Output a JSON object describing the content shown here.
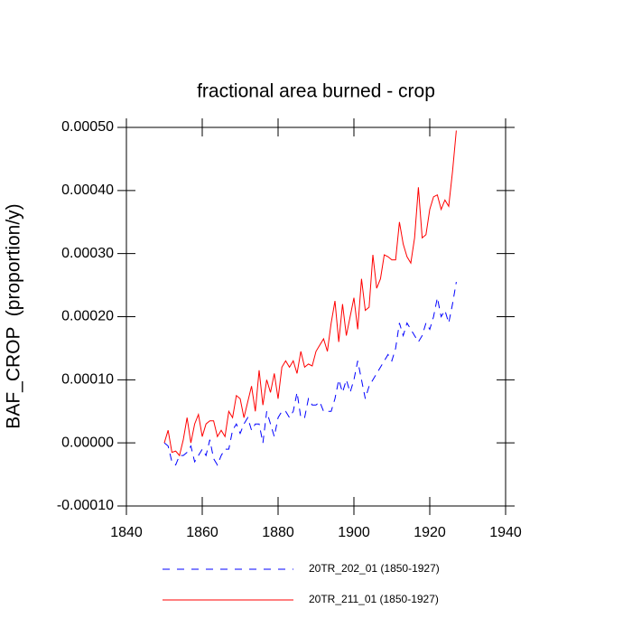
{
  "chart_data": {
    "type": "line",
    "title": "fractional area burned - crop",
    "y_label": "BAF_CROP  (proportion/y)",
    "x": [
      1850,
      1851,
      1852,
      1853,
      1854,
      1855,
      1856,
      1857,
      1858,
      1859,
      1860,
      1861,
      1862,
      1863,
      1864,
      1865,
      1866,
      1867,
      1868,
      1869,
      1870,
      1871,
      1872,
      1873,
      1874,
      1875,
      1876,
      1877,
      1878,
      1879,
      1880,
      1881,
      1882,
      1883,
      1884,
      1885,
      1886,
      1887,
      1888,
      1889,
      1890,
      1891,
      1892,
      1893,
      1894,
      1895,
      1896,
      1897,
      1898,
      1899,
      1900,
      1901,
      1902,
      1903,
      1904,
      1905,
      1906,
      1907,
      1908,
      1909,
      1910,
      1911,
      1912,
      1913,
      1914,
      1915,
      1916,
      1917,
      1918,
      1919,
      1920,
      1921,
      1922,
      1923,
      1924,
      1925,
      1926,
      1927
    ],
    "series": [
      {
        "name": "20TR_202_01 (1850-1927)",
        "color": "#0000ff",
        "dashed": true,
        "values": [
          0,
          -5e-06,
          -3e-05,
          -3.5e-05,
          -2e-05,
          -2e-05,
          -1.5e-05,
          -5e-06,
          -3e-05,
          -2e-05,
          -1e-05,
          -2e-05,
          5e-06,
          -2.5e-05,
          -3.5e-05,
          -2e-05,
          -1e-05,
          -1e-05,
          2e-05,
          3e-05,
          1.5e-05,
          3e-05,
          4e-05,
          2e-05,
          3e-05,
          3e-05,
          0,
          5e-05,
          3e-05,
          1e-05,
          4e-05,
          5e-05,
          5e-05,
          4e-05,
          5e-05,
          8e-05,
          4e-05,
          4e-05,
          7e-05,
          6e-05,
          6e-05,
          6.5e-05,
          5e-05,
          5e-05,
          5e-05,
          7e-05,
          0.0001,
          8e-05,
          0.0001,
          8e-05,
          0.0001,
          0.00013,
          0.0001,
          7e-05,
          9e-05,
          0.0001,
          0.00011,
          0.00012,
          0.00013,
          0.00014,
          0.00013,
          0.00015,
          0.00019,
          0.00017,
          0.00019,
          0.00018,
          0.00017,
          0.00016,
          0.00017,
          0.00019,
          0.00018,
          0.0002,
          0.00023,
          0.0002,
          0.00021,
          0.00019,
          0.00022,
          0.000255
        ]
      },
      {
        "name": "20TR_211_01 (1850-1927)",
        "color": "#ff0000",
        "dashed": false,
        "values": [
          0,
          2e-05,
          -1.5e-05,
          -1.3e-05,
          -2e-05,
          5e-06,
          4e-05,
          0,
          3e-05,
          4.5e-05,
          1e-05,
          3e-05,
          3.5e-05,
          3.5e-05,
          1e-05,
          2e-05,
          1e-05,
          5e-05,
          4e-05,
          7.5e-05,
          7e-05,
          4e-05,
          6.5e-05,
          9e-05,
          5e-05,
          0.000115,
          6e-05,
          0.0001,
          8e-05,
          0.00011,
          7e-05,
          0.00012,
          0.00013,
          0.00012,
          0.00013,
          0.00011,
          0.000145,
          0.00012,
          0.000125,
          0.000122,
          0.000145,
          0.000155,
          0.000165,
          0.000145,
          0.00019,
          0.000225,
          0.00016,
          0.00022,
          0.00017,
          0.0002,
          0.00023,
          0.00018,
          0.00026,
          0.00021,
          0.000215,
          0.000298,
          0.000245,
          0.00026,
          0.000298,
          0.000295,
          0.00029,
          0.00029,
          0.00035,
          0.000315,
          0.000295,
          0.000285,
          0.000325,
          0.000405,
          0.000325,
          0.00033,
          0.00037,
          0.00039,
          0.000393,
          0.00037,
          0.000385,
          0.000375,
          0.00043,
          0.000495
        ]
      }
    ],
    "xlim": [
      1840,
      1940
    ],
    "xticks": [
      1840,
      1860,
      1880,
      1900,
      1920,
      1940
    ],
    "ylim": [
      -0.0001,
      0.0005
    ],
    "yticks": [
      {
        "value": -0.0001,
        "label": "-0.00010"
      },
      {
        "value": 0,
        "label": "0.00000"
      },
      {
        "value": 0.0001,
        "label": "0.00010"
      },
      {
        "value": 0.0002,
        "label": "0.00020"
      },
      {
        "value": 0.0003,
        "label": "0.00030"
      },
      {
        "value": 0.0004,
        "label": "0.00040"
      },
      {
        "value": 0.0005,
        "label": "0.00050"
      }
    ],
    "legend": "bottom"
  }
}
